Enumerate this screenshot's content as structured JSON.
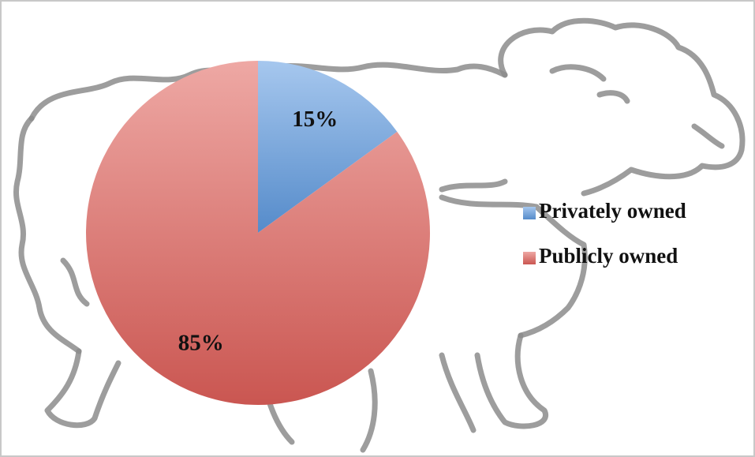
{
  "chart_data": {
    "type": "pie",
    "categories": [
      "Privately owned",
      "Publicly owned"
    ],
    "values": [
      15,
      85
    ],
    "value_labels": [
      "15%",
      "85%"
    ],
    "colors": [
      "#5e9ae0",
      "#e0605a"
    ],
    "legend": "right"
  }
}
